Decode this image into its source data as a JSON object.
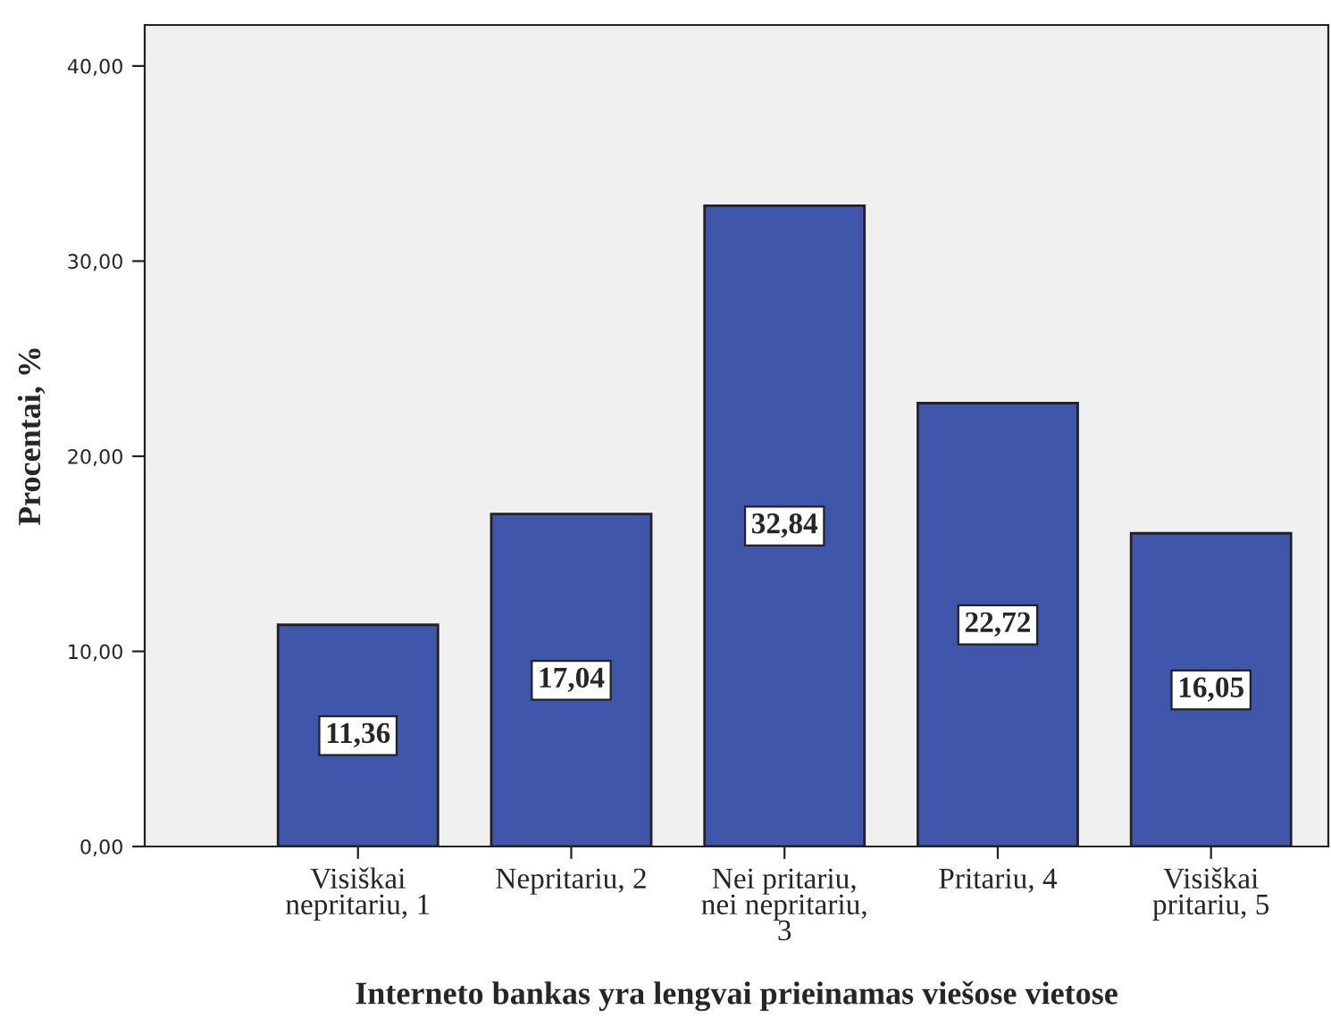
{
  "chart_data": {
    "type": "bar",
    "xlabel": "Interneto bankas yra lengvai prieinamas viešose vietose",
    "ylabel": "Procentai, %",
    "categories": [
      "Visiškai\nnepritariu, 1",
      "Nepritariu, 2",
      "Nei pritariu,\nnei nepritariu,\n3",
      "Pritariu, 4",
      "Visiškai\npritariu, 5"
    ],
    "values": [
      11.36,
      17.04,
      32.84,
      22.72,
      16.05
    ],
    "value_labels": [
      "11,36",
      "17,04",
      "32,84",
      "22,72",
      "16,05"
    ],
    "color": "#3f56ab",
    "ylim": [
      0,
      42.1
    ],
    "yticks": [
      {
        "value": 0,
        "label": "0,00"
      },
      {
        "value": 10,
        "label": "10,00"
      },
      {
        "value": 20,
        "label": "20,00"
      },
      {
        "value": 30,
        "label": "30,00"
      },
      {
        "value": 40,
        "label": "40,00"
      }
    ],
    "grid": false,
    "legend": false
  }
}
